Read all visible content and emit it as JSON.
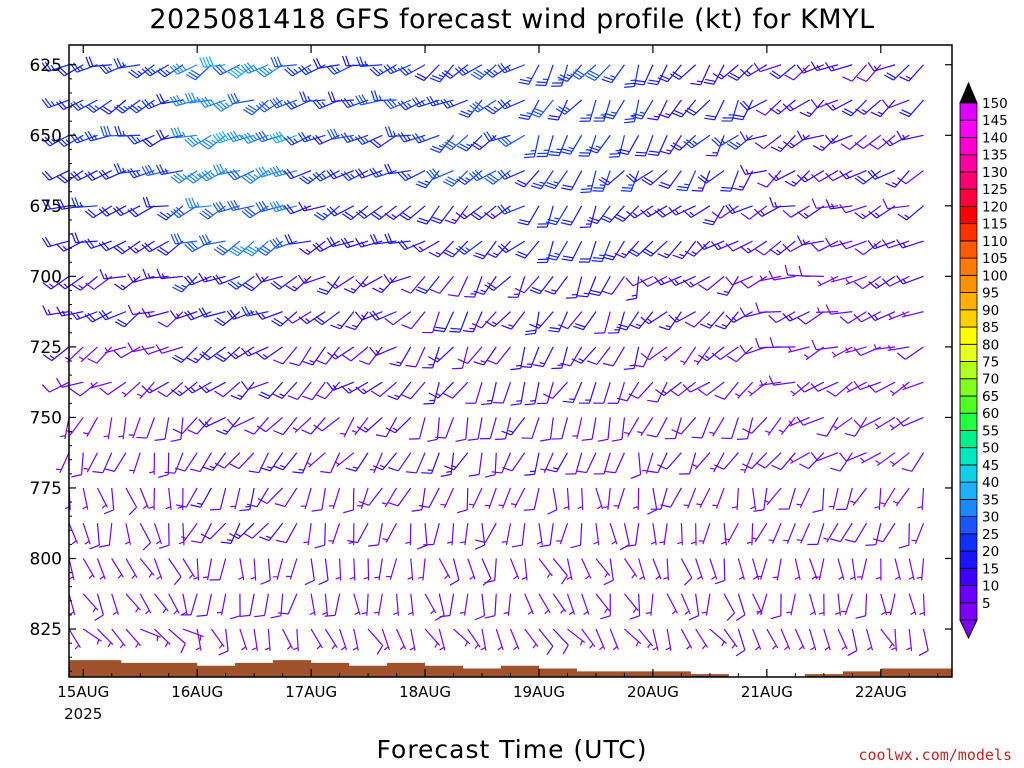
{
  "chart_data": {
    "type": "wind-barb-profile",
    "title": "2025081418 GFS forecast wind profile (kt) for KMYL",
    "xlabel": "Forecast Time (UTC)",
    "ylabel": "",
    "credit": "coolwx.com/models",
    "y_axis": {
      "reversed": true,
      "tick_labels": [
        "625",
        "650",
        "675",
        "700",
        "725",
        "750",
        "775",
        "800",
        "825"
      ],
      "range": [
        618,
        842
      ]
    },
    "x_axis": {
      "tick_labels": [
        "15AUG",
        "16AUG",
        "17AUG",
        "18AUG",
        "19AUG",
        "20AUG",
        "21AUG",
        "22AUG"
      ],
      "year_label": "2025",
      "hours_per_day": 24,
      "range_hours": [
        0,
        180
      ]
    },
    "colorbar": {
      "labels": [
        "5",
        "10",
        "15",
        "20",
        "25",
        "30",
        "35",
        "40",
        "45",
        "50",
        "55",
        "60",
        "65",
        "70",
        "75",
        "80",
        "85",
        "90",
        "95",
        "100",
        "105",
        "110",
        "115",
        "120",
        "125",
        "130",
        "135",
        "140",
        "145",
        "150"
      ],
      "colors": [
        "#8000ff",
        "#6a00ff",
        "#3d00ff",
        "#1a14ff",
        "#1030ff",
        "#1a55ff",
        "#1c88ff",
        "#1cb0ff",
        "#10d0e8",
        "#00e8c0",
        "#00f090",
        "#20ff40",
        "#50ff20",
        "#80ff20",
        "#b0ff20",
        "#e8ff20",
        "#ffff00",
        "#ffd000",
        "#ffb000",
        "#ff9000",
        "#ff7a00",
        "#ff5a00",
        "#ff3000",
        "#ff0000",
        "#ff0040",
        "#ff0070",
        "#ff00a0",
        "#ff00d0",
        "#ff00ff",
        "#e000ff"
      ]
    },
    "terrain": {
      "color": "#a0522d",
      "surface_pressure": [
        836,
        836,
        837,
        837,
        838,
        837,
        836,
        837,
        838,
        837,
        838,
        839,
        838,
        839,
        840,
        840,
        840,
        841,
        842,
        842,
        841,
        840,
        839,
        839
      ],
      "surface_hours": [
        0,
        8,
        16,
        24,
        32,
        40,
        48,
        56,
        64,
        72,
        80,
        88,
        96,
        104,
        112,
        120,
        128,
        136,
        144,
        152,
        160,
        168,
        176,
        180
      ]
    },
    "levels": [
      625,
      650,
      675,
      700,
      725,
      750,
      775,
      800,
      825
    ],
    "regimes": {
      "note": "wind vectors per level/time-band: [speed_kt, from_direction_deg]",
      "bands_hours": [
        0,
        24,
        48,
        72,
        96,
        120,
        144,
        180
      ],
      "by_level": {
        "625": [
          [
            25,
            250
          ],
          [
            35,
            245
          ],
          [
            25,
            250
          ],
          [
            25,
            235
          ],
          [
            25,
            210
          ],
          [
            20,
            210
          ],
          [
            15,
            240
          ]
        ],
        "650": [
          [
            25,
            250
          ],
          [
            35,
            245
          ],
          [
            25,
            250
          ],
          [
            25,
            235
          ],
          [
            25,
            210
          ],
          [
            20,
            220
          ],
          [
            15,
            240
          ]
        ],
        "675": [
          [
            20,
            250
          ],
          [
            30,
            245
          ],
          [
            20,
            245
          ],
          [
            20,
            230
          ],
          [
            20,
            210
          ],
          [
            15,
            230
          ],
          [
            12,
            250
          ]
        ],
        "700": [
          [
            15,
            245
          ],
          [
            20,
            240
          ],
          [
            15,
            235
          ],
          [
            15,
            215
          ],
          [
            15,
            205
          ],
          [
            12,
            230
          ],
          [
            10,
            255
          ]
        ],
        "725": [
          [
            10,
            240
          ],
          [
            15,
            235
          ],
          [
            12,
            230
          ],
          [
            12,
            210
          ],
          [
            12,
            205
          ],
          [
            10,
            225
          ],
          [
            8,
            250
          ]
        ],
        "750": [
          [
            8,
            200
          ],
          [
            12,
            225
          ],
          [
            10,
            220
          ],
          [
            10,
            200
          ],
          [
            10,
            195
          ],
          [
            8,
            210
          ],
          [
            8,
            230
          ]
        ],
        "775": [
          [
            6,
            170
          ],
          [
            10,
            210
          ],
          [
            8,
            200
          ],
          [
            8,
            190
          ],
          [
            8,
            180
          ],
          [
            6,
            190
          ],
          [
            6,
            200
          ]
        ],
        "800": [
          [
            5,
            150
          ],
          [
            8,
            190
          ],
          [
            6,
            180
          ],
          [
            6,
            170
          ],
          [
            6,
            160
          ],
          [
            5,
            170
          ],
          [
            5,
            180
          ]
        ],
        "825": [
          [
            5,
            130
          ],
          [
            6,
            160
          ],
          [
            5,
            150
          ],
          [
            5,
            150
          ],
          [
            5,
            140
          ],
          [
            5,
            150
          ],
          [
            5,
            160
          ]
        ]
      }
    }
  }
}
